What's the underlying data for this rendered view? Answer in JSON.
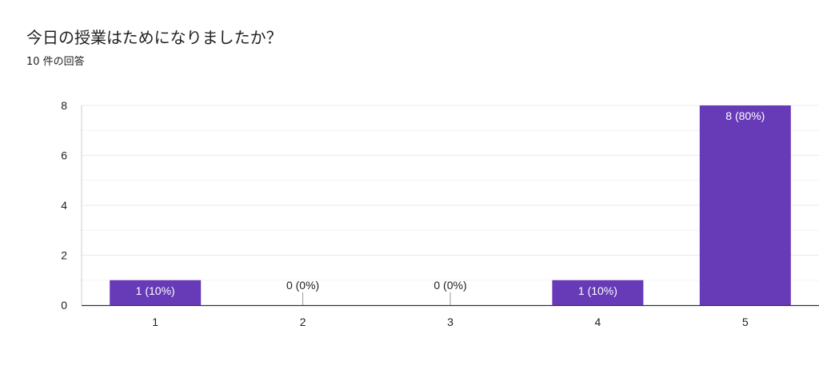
{
  "question": {
    "title": "今日の授業はためになりましたか？",
    "response_count": "10 件の回答"
  },
  "colors": {
    "bar": "#673ab7",
    "label_inside": "#ffffff",
    "label_outside": "#222222",
    "grid": "#ebebeb",
    "axis": "#333333"
  },
  "chart_data": {
    "type": "bar",
    "categories": [
      "1",
      "2",
      "3",
      "4",
      "5"
    ],
    "values": [
      1,
      0,
      0,
      1,
      8
    ],
    "data_labels": [
      "1 (10%)",
      "0 (0%)",
      "0 (0%)",
      "1 (10%)",
      "8 (80%)"
    ],
    "ylim": [
      0,
      8
    ],
    "yticks": [
      0,
      2,
      4,
      6,
      8
    ],
    "grid": true,
    "legend": "none"
  }
}
